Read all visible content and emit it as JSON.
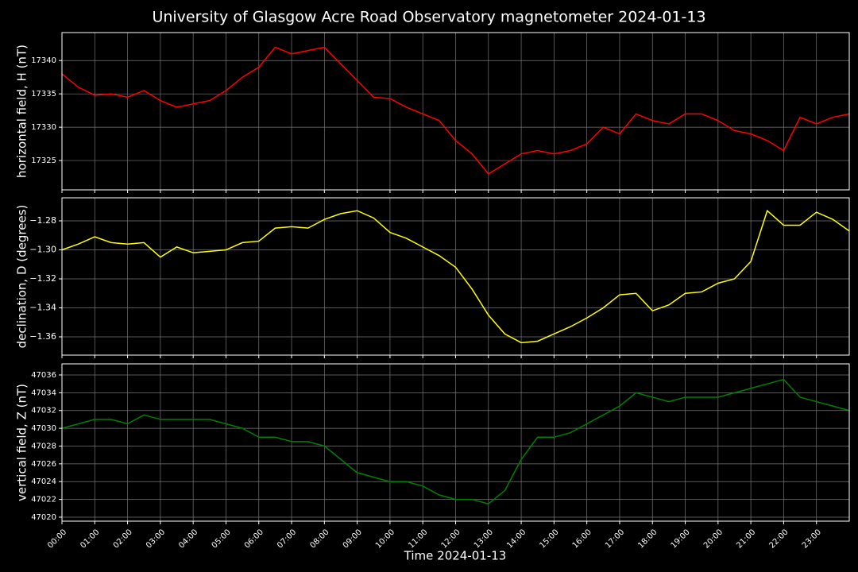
{
  "chart_data": [
    {
      "type": "line",
      "title": "University of Glasgow Acre Road Observatory magnetometer 2024-01-13",
      "ylabel": "horizontal field, H (nT)",
      "color": "#ff0000",
      "grid": true,
      "x": [
        0,
        0.5,
        1,
        1.5,
        2,
        2.5,
        3,
        3.5,
        4,
        4.5,
        5,
        5.5,
        6,
        6.5,
        7,
        7.5,
        8,
        8.5,
        9,
        9.5,
        10,
        10.5,
        11,
        11.5,
        12,
        12.5,
        13,
        13.5,
        14,
        14.5,
        15,
        15.5,
        16,
        16.5,
        17,
        17.5,
        18,
        18.5,
        19,
        19.5,
        20,
        20.5,
        21,
        21.5,
        22,
        22.5,
        23,
        23.5,
        24
      ],
      "values": [
        17338,
        17336,
        17334.8,
        17335,
        17334.5,
        17335.5,
        17334,
        17333,
        17333.5,
        17334,
        17335.5,
        17337.5,
        17339,
        17342,
        17341,
        17341.5,
        17342,
        17339.5,
        17337,
        17334.5,
        17334.3,
        17333,
        17332,
        17331,
        17328,
        17326,
        17323,
        17324.5,
        17326,
        17326.5,
        17326,
        17326.5,
        17327.5,
        17330,
        17329,
        17332,
        17331,
        17330.5,
        17332,
        17332,
        17331,
        17329.5,
        17329,
        17328,
        17326.5,
        17331.5,
        17330.5,
        17331.5,
        17332
      ],
      "xlim": [
        0,
        24
      ],
      "ylim": [
        17320.6,
        17344.2
      ],
      "yticks": [
        17325,
        17330,
        17335,
        17340
      ]
    },
    {
      "type": "line",
      "ylabel": "declination, D (degrees)",
      "color": "#ffff00",
      "grid": true,
      "x": [
        0,
        0.5,
        1,
        1.5,
        2,
        2.5,
        3,
        3.5,
        4,
        4.5,
        5,
        5.5,
        6,
        6.5,
        7,
        7.5,
        8,
        8.5,
        9,
        9.5,
        10,
        10.5,
        11,
        11.5,
        12,
        12.5,
        13,
        13.5,
        14,
        14.5,
        15,
        15.5,
        16,
        16.5,
        17,
        17.5,
        18,
        18.5,
        19,
        19.5,
        20,
        20.5,
        21,
        21.5,
        22,
        22.5,
        23,
        23.5,
        24
      ],
      "values": [
        -1.3,
        -1.296,
        -1.291,
        -1.295,
        -1.296,
        -1.295,
        -1.305,
        -1.298,
        -1.302,
        -1.301,
        -1.3,
        -1.295,
        -1.294,
        -1.285,
        -1.284,
        -1.285,
        -1.279,
        -1.275,
        -1.273,
        -1.278,
        -1.288,
        -1.292,
        -1.298,
        -1.304,
        -1.312,
        -1.327,
        -1.345,
        -1.358,
        -1.364,
        -1.363,
        -1.358,
        -1.353,
        -1.347,
        -1.34,
        -1.331,
        -1.33,
        -1.342,
        -1.338,
        -1.33,
        -1.329,
        -1.323,
        -1.32,
        -1.308,
        -1.273,
        -1.283,
        -1.283,
        -1.274,
        -1.279,
        -1.287
      ],
      "xlim": [
        0,
        24
      ],
      "ylim": [
        -1.3726,
        -1.2641
      ],
      "yticks": [
        {
          "value": -1.36,
          "label": "−1.36"
        },
        {
          "value": -1.34,
          "label": "−1.34"
        },
        {
          "value": -1.32,
          "label": "−1.32"
        },
        {
          "value": -1.3,
          "label": "−1.30"
        },
        {
          "value": -1.28,
          "label": "−1.28"
        }
      ]
    },
    {
      "type": "line",
      "ylabel": "vertical field, Z (nT)",
      "xlabel": "Time 2024-01-13",
      "color": "#008000",
      "grid": true,
      "x": [
        0,
        0.5,
        1,
        1.5,
        2,
        2.5,
        3,
        3.5,
        4,
        4.5,
        5,
        5.5,
        6,
        6.5,
        7,
        7.5,
        8,
        8.5,
        9,
        9.5,
        10,
        10.5,
        11,
        11.5,
        12,
        12.5,
        13,
        13.5,
        14,
        14.5,
        15,
        15.5,
        16,
        16.5,
        17,
        17.5,
        18,
        18.5,
        19,
        19.5,
        20,
        20.5,
        21,
        21.5,
        22,
        22.5,
        23,
        23.5,
        24
      ],
      "values": [
        47030,
        47030.5,
        47031,
        47031,
        47030.5,
        47031.5,
        47031,
        47031,
        47031,
        47031,
        47030.5,
        47030,
        47029,
        47029,
        47028.5,
        47028.5,
        47028,
        47026.5,
        47025,
        47024.5,
        47024,
        47024,
        47023.5,
        47022.5,
        47022,
        47022,
        47021.5,
        47023,
        47026.5,
        47029,
        47029,
        47029.5,
        47030.5,
        47031.5,
        47032.5,
        47034,
        47033.5,
        47033,
        47033.5,
        47033.5,
        47033.5,
        47034,
        47034.5,
        47035,
        47035.5,
        47033.5,
        47033,
        47032.5,
        47032
      ],
      "xlim": [
        0,
        24
      ],
      "ylim": [
        47019.55,
        47037.25
      ],
      "yticks": [
        47020,
        47022,
        47024,
        47026,
        47028,
        47030,
        47032,
        47034,
        47036
      ],
      "xticks": [
        {
          "value": 0,
          "label": "00:00"
        },
        {
          "value": 1,
          "label": "01:00"
        },
        {
          "value": 2,
          "label": "02:00"
        },
        {
          "value": 3,
          "label": "03:00"
        },
        {
          "value": 4,
          "label": "04:00"
        },
        {
          "value": 5,
          "label": "05:00"
        },
        {
          "value": 6,
          "label": "06:00"
        },
        {
          "value": 7,
          "label": "07:00"
        },
        {
          "value": 8,
          "label": "08:00"
        },
        {
          "value": 9,
          "label": "09:00"
        },
        {
          "value": 10,
          "label": "10:00"
        },
        {
          "value": 11,
          "label": "11:00"
        },
        {
          "value": 12,
          "label": "12:00"
        },
        {
          "value": 13,
          "label": "13:00"
        },
        {
          "value": 14,
          "label": "14:00"
        },
        {
          "value": 15,
          "label": "15:00"
        },
        {
          "value": 16,
          "label": "16:00"
        },
        {
          "value": 17,
          "label": "17:00"
        },
        {
          "value": 18,
          "label": "18:00"
        },
        {
          "value": 19,
          "label": "19:00"
        },
        {
          "value": 20,
          "label": "20:00"
        },
        {
          "value": 21,
          "label": "21:00"
        },
        {
          "value": 22,
          "label": "22:00"
        },
        {
          "value": 23,
          "label": "23:00"
        }
      ]
    }
  ]
}
